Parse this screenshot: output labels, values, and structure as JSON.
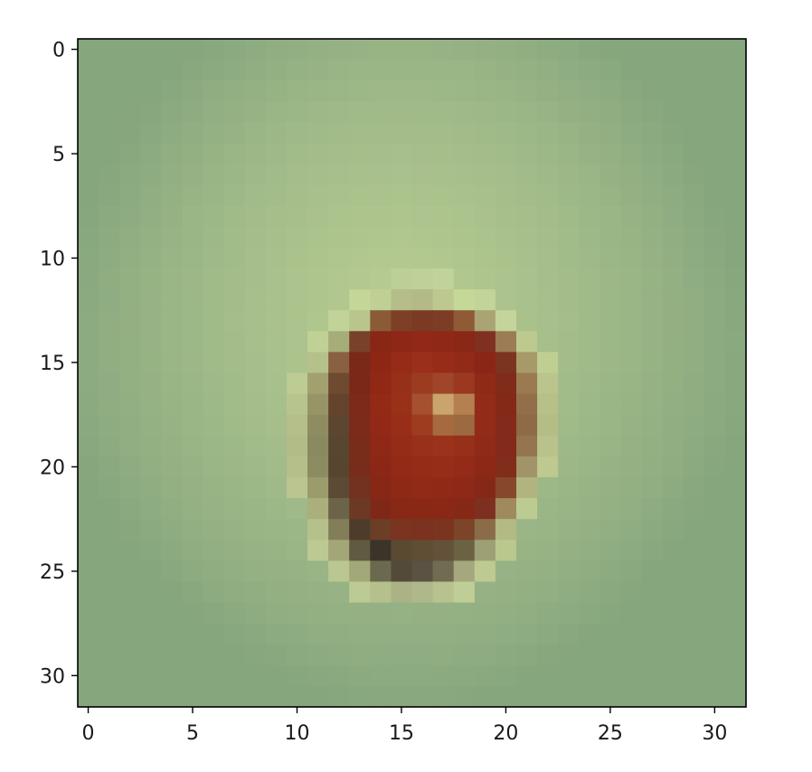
{
  "chart_data": {
    "type": "heatmap",
    "title": "",
    "xlabel": "",
    "ylabel": "",
    "grid": false,
    "rows": 32,
    "cols": 32,
    "x_ticks": [
      0,
      5,
      10,
      15,
      20,
      25,
      30
    ],
    "y_ticks": [
      0,
      5,
      10,
      15,
      20,
      25,
      30
    ],
    "xlim": [
      -0.5,
      31.5
    ],
    "ylim": [
      31.5,
      -0.5
    ],
    "x_tick_labels": [
      "0",
      "5",
      "10",
      "15",
      "20",
      "25",
      "30"
    ],
    "y_tick_labels": [
      "0",
      "5",
      "10",
      "15",
      "20",
      "25",
      "30"
    ],
    "image_description_colors": {
      "background_center": "#b9cd92",
      "background_edge": "#86a67e",
      "blob_core": "#8a2414",
      "blob_shadow": "#3c3628",
      "highlight": "#c7a66b"
    },
    "blob_rows": [
      {
        "row": 11,
        "cells": [
          [
            15,
            "#bccf98"
          ],
          [
            16,
            "#bed198"
          ],
          [
            17,
            "#c0d39a"
          ]
        ]
      },
      {
        "row": 12,
        "cells": [
          [
            13,
            "#c4d698"
          ],
          [
            14,
            "#c0d094"
          ],
          [
            15,
            "#b5bd8a"
          ],
          [
            16,
            "#b3b987"
          ],
          [
            17,
            "#bcc890"
          ],
          [
            18,
            "#c6d898"
          ],
          [
            19,
            "#c2d49a"
          ]
        ]
      },
      {
        "row": 13,
        "cells": [
          [
            12,
            "#c2d39a"
          ],
          [
            13,
            "#b8c58c"
          ],
          [
            14,
            "#8b5b37"
          ],
          [
            15,
            "#7e3f27"
          ],
          [
            16,
            "#7a3a24"
          ],
          [
            17,
            "#7d3c26"
          ],
          [
            18,
            "#8f5b37"
          ],
          [
            19,
            "#aaa373"
          ],
          [
            20,
            "#c4d49a"
          ]
        ]
      },
      {
        "row": 14,
        "cells": [
          [
            11,
            "#c0d196"
          ],
          [
            12,
            "#a6ad79"
          ],
          [
            13,
            "#79412a"
          ],
          [
            14,
            "#8a2616"
          ],
          [
            15,
            "#8e2716"
          ],
          [
            16,
            "#922918"
          ],
          [
            17,
            "#8f2816"
          ],
          [
            18,
            "#8b2716"
          ],
          [
            19,
            "#7f3020"
          ],
          [
            20,
            "#9c7c54"
          ],
          [
            21,
            "#bdc98f"
          ]
        ]
      },
      {
        "row": 15,
        "cells": [
          [
            11,
            "#b6c08b"
          ],
          [
            12,
            "#8a6140"
          ],
          [
            13,
            "#7a2818"
          ],
          [
            14,
            "#8e2614"
          ],
          [
            15,
            "#962c18"
          ],
          [
            16,
            "#9a2f1b"
          ],
          [
            17,
            "#972c19"
          ],
          [
            18,
            "#922a18"
          ],
          [
            19,
            "#892616"
          ],
          [
            20,
            "#7c3420"
          ],
          [
            21,
            "#a89968"
          ],
          [
            22,
            "#bfcf92"
          ]
        ]
      },
      {
        "row": 16,
        "cells": [
          [
            10,
            "#bccc92"
          ],
          [
            11,
            "#a3a070"
          ],
          [
            12,
            "#6e4a30"
          ],
          [
            13,
            "#7c2818"
          ],
          [
            14,
            "#902815"
          ],
          [
            15,
            "#973018"
          ],
          [
            16,
            "#9b3c21"
          ],
          [
            17,
            "#a0452a"
          ],
          [
            18,
            "#9a3820"
          ],
          [
            19,
            "#8e2a16"
          ],
          [
            20,
            "#812b1a"
          ],
          [
            21,
            "#9b7a52"
          ],
          [
            22,
            "#b9c58c"
          ]
        ]
      },
      {
        "row": 17,
        "cells": [
          [
            10,
            "#b8c48e"
          ],
          [
            11,
            "#979468"
          ],
          [
            12,
            "#64442c"
          ],
          [
            13,
            "#7d2a18"
          ],
          [
            14,
            "#922a16"
          ],
          [
            15,
            "#993018"
          ],
          [
            16,
            "#a5502e"
          ],
          [
            17,
            "#c9a46c"
          ],
          [
            18,
            "#b48050"
          ],
          [
            19,
            "#922c18"
          ],
          [
            20,
            "#842818"
          ],
          [
            21,
            "#926e4a"
          ],
          [
            22,
            "#b6c088"
          ]
        ]
      },
      {
        "row": 18,
        "cells": [
          [
            10,
            "#b5bf8a"
          ],
          [
            11,
            "#8f8c62"
          ],
          [
            12,
            "#5d4630"
          ],
          [
            13,
            "#7c2b1a"
          ],
          [
            14,
            "#912916"
          ],
          [
            15,
            "#982e18"
          ],
          [
            16,
            "#9e3c20"
          ],
          [
            17,
            "#a76a3e"
          ],
          [
            18,
            "#9c6a40"
          ],
          [
            19,
            "#922c18"
          ],
          [
            20,
            "#842a1a"
          ],
          [
            21,
            "#8f6a46"
          ],
          [
            22,
            "#b4bd86"
          ]
        ]
      },
      {
        "row": 19,
        "cells": [
          [
            10,
            "#b2bc88"
          ],
          [
            11,
            "#8a8a60"
          ],
          [
            12,
            "#584630"
          ],
          [
            13,
            "#7a2c1a"
          ],
          [
            14,
            "#8f2816"
          ],
          [
            15,
            "#952c18"
          ],
          [
            16,
            "#98301a"
          ],
          [
            17,
            "#9b331c"
          ],
          [
            18,
            "#96301a"
          ],
          [
            19,
            "#8e2a17"
          ],
          [
            20,
            "#832a1a"
          ],
          [
            21,
            "#957452"
          ],
          [
            22,
            "#b8c28a"
          ]
        ]
      },
      {
        "row": 20,
        "cells": [
          [
            10,
            "#b4bf8a"
          ],
          [
            11,
            "#8c8c62"
          ],
          [
            12,
            "#584530"
          ],
          [
            13,
            "#782c1a"
          ],
          [
            14,
            "#8c2716"
          ],
          [
            15,
            "#922a17"
          ],
          [
            16,
            "#952c18"
          ],
          [
            17,
            "#962d18"
          ],
          [
            18,
            "#932b18"
          ],
          [
            19,
            "#8b2816"
          ],
          [
            20,
            "#802d1c"
          ],
          [
            21,
            "#a09468"
          ],
          [
            22,
            "#bdc98f"
          ]
        ]
      },
      {
        "row": 21,
        "cells": [
          [
            10,
            "#bac590"
          ],
          [
            11,
            "#9a9c6c"
          ],
          [
            12,
            "#5b4a34"
          ],
          [
            13,
            "#733220"
          ],
          [
            14,
            "#872817"
          ],
          [
            15,
            "#8e2916"
          ],
          [
            16,
            "#912a17"
          ],
          [
            17,
            "#902a17"
          ],
          [
            18,
            "#8d2916"
          ],
          [
            19,
            "#852817"
          ],
          [
            20,
            "#87472c"
          ],
          [
            21,
            "#b1b47e"
          ]
        ]
      },
      {
        "row": 22,
        "cells": [
          [
            11,
            "#aaaf7c"
          ],
          [
            12,
            "#6c6448"
          ],
          [
            13,
            "#6c3a24"
          ],
          [
            14,
            "#802818"
          ],
          [
            15,
            "#882816"
          ],
          [
            16,
            "#8a2816"
          ],
          [
            17,
            "#892816"
          ],
          [
            18,
            "#852816"
          ],
          [
            19,
            "#7e3020"
          ],
          [
            20,
            "#9f8a5e"
          ],
          [
            21,
            "#bccb92"
          ]
        ]
      },
      {
        "row": 23,
        "cells": [
          [
            11,
            "#b6c08a"
          ],
          [
            12,
            "#827e5a"
          ],
          [
            13,
            "#4e3c2a"
          ],
          [
            14,
            "#6c3e26"
          ],
          [
            15,
            "#7a3420"
          ],
          [
            16,
            "#7b3220"
          ],
          [
            17,
            "#7a3420"
          ],
          [
            18,
            "#7c4428"
          ],
          [
            19,
            "#8a6d48"
          ],
          [
            20,
            "#b3ba84"
          ]
        ]
      },
      {
        "row": 24,
        "cells": [
          [
            11,
            "#bdc992"
          ],
          [
            12,
            "#a3a676"
          ],
          [
            13,
            "#5f5a40"
          ],
          [
            14,
            "#3c3428"
          ],
          [
            15,
            "#5a4a32"
          ],
          [
            16,
            "#5f4d34"
          ],
          [
            17,
            "#63513a"
          ],
          [
            18,
            "#6b6244"
          ],
          [
            19,
            "#9da074"
          ],
          [
            20,
            "#bac88e"
          ]
        ]
      },
      {
        "row": 25,
        "cells": [
          [
            12,
            "#bac792"
          ],
          [
            13,
            "#a2a878"
          ],
          [
            14,
            "#6c6a4e"
          ],
          [
            15,
            "#544a3a"
          ],
          [
            16,
            "#5a5242"
          ],
          [
            17,
            "#6f6c52"
          ],
          [
            18,
            "#a4a87c"
          ],
          [
            19,
            "#bdca92"
          ]
        ]
      },
      {
        "row": 26,
        "cells": [
          [
            13,
            "#bccb96"
          ],
          [
            14,
            "#b5c08c"
          ],
          [
            15,
            "#aab286"
          ],
          [
            16,
            "#aeb88a"
          ],
          [
            17,
            "#b7c290"
          ],
          [
            18,
            "#bfcd96"
          ]
        ]
      }
    ]
  }
}
